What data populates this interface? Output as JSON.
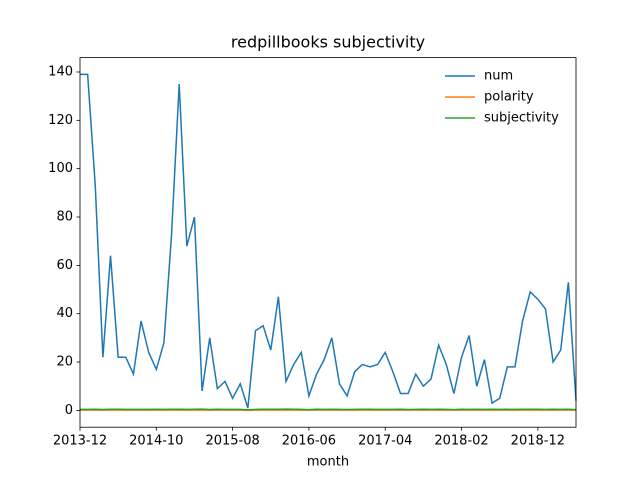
{
  "chart_data": {
    "type": "line",
    "title": "redpillbooks subjectivity",
    "x_label": "month",
    "x": [
      "2013-12",
      "2014-01",
      "2014-02",
      "2014-03",
      "2014-04",
      "2014-05",
      "2014-06",
      "2014-07",
      "2014-08",
      "2014-09",
      "2014-10",
      "2014-11",
      "2014-12",
      "2015-01",
      "2015-02",
      "2015-03",
      "2015-04",
      "2015-05",
      "2015-06",
      "2015-07",
      "2015-08",
      "2015-09",
      "2015-10",
      "2015-11",
      "2015-12",
      "2016-01",
      "2016-02",
      "2016-03",
      "2016-04",
      "2016-05",
      "2016-06",
      "2016-07",
      "2016-08",
      "2016-09",
      "2016-10",
      "2016-11",
      "2016-12",
      "2017-01",
      "2017-02",
      "2017-03",
      "2017-04",
      "2017-05",
      "2017-06",
      "2017-07",
      "2017-08",
      "2017-09",
      "2017-10",
      "2017-11",
      "2017-12",
      "2018-01",
      "2018-02",
      "2018-03",
      "2018-04",
      "2018-05",
      "2018-06",
      "2018-07",
      "2018-08",
      "2018-09",
      "2018-10",
      "2018-11",
      "2018-12",
      "2019-01",
      "2019-02",
      "2019-03",
      "2019-04",
      "2019-05"
    ],
    "series": [
      {
        "name": "num",
        "color": "#1f77b4",
        "values": [
          139,
          139,
          93,
          22,
          64,
          22,
          22,
          15,
          37,
          24,
          17,
          28,
          73,
          135,
          68,
          80,
          8,
          30,
          9,
          12,
          5,
          11,
          1,
          33,
          35,
          25,
          47,
          12,
          19,
          24,
          6,
          15,
          21,
          30,
          11,
          6,
          16,
          19,
          18,
          19,
          24,
          16,
          7,
          7,
          15,
          10,
          13,
          27,
          19,
          7,
          22,
          31,
          10,
          21,
          3,
          5,
          18,
          18,
          37,
          49,
          46,
          42,
          20,
          25,
          53,
          4
        ]
      },
      {
        "name": "polarity",
        "color": "#ff7f0e",
        "values": [
          0.1,
          0.1,
          0.1,
          0.1,
          0.1,
          0.1,
          0.1,
          0.1,
          0.1,
          0.1,
          0.1,
          0.1,
          0.1,
          0.1,
          0.1,
          0.1,
          0.1,
          0.1,
          0.1,
          0.1,
          0.1,
          0.1,
          0.0,
          0.1,
          0.1,
          0.1,
          0.1,
          0.1,
          0.1,
          0.1,
          0.1,
          0.1,
          0.1,
          0.1,
          0.1,
          0.1,
          0.1,
          0.1,
          0.1,
          0.1,
          0.1,
          0.1,
          0.1,
          0.1,
          0.1,
          0.1,
          0.1,
          0.1,
          0.1,
          0.1,
          0.1,
          0.1,
          0.1,
          0.1,
          0.1,
          0.1,
          0.1,
          0.1,
          0.1,
          0.1,
          0.1,
          0.1,
          0.1,
          0.1,
          0.1,
          0.1
        ]
      },
      {
        "name": "subjectivity",
        "color": "#2ca02c",
        "values": [
          0.4,
          0.4,
          0.45,
          0.35,
          0.45,
          0.5,
          0.4,
          0.4,
          0.4,
          0.4,
          0.45,
          0.4,
          0.45,
          0.45,
          0.4,
          0.45,
          0.55,
          0.35,
          0.5,
          0.4,
          0.4,
          0.4,
          0.2,
          0.4,
          0.45,
          0.45,
          0.5,
          0.55,
          0.45,
          0.4,
          0.3,
          0.45,
          0.4,
          0.45,
          0.4,
          0.35,
          0.4,
          0.45,
          0.45,
          0.4,
          0.4,
          0.4,
          0.5,
          0.35,
          0.4,
          0.45,
          0.4,
          0.45,
          0.4,
          0.3,
          0.45,
          0.4,
          0.45,
          0.4,
          0.45,
          0.4,
          0.45,
          0.4,
          0.45,
          0.45,
          0.45,
          0.4,
          0.45,
          0.4,
          0.45,
          0.3
        ]
      }
    ],
    "xticks": [
      "2013-12",
      "2014-10",
      "2015-08",
      "2016-06",
      "2017-04",
      "2018-02",
      "2018-12"
    ],
    "ylim": [
      -6.95,
      145.95
    ],
    "yticks": [
      0,
      20,
      40,
      60,
      80,
      100,
      120,
      140
    ],
    "legend": "upper right"
  }
}
